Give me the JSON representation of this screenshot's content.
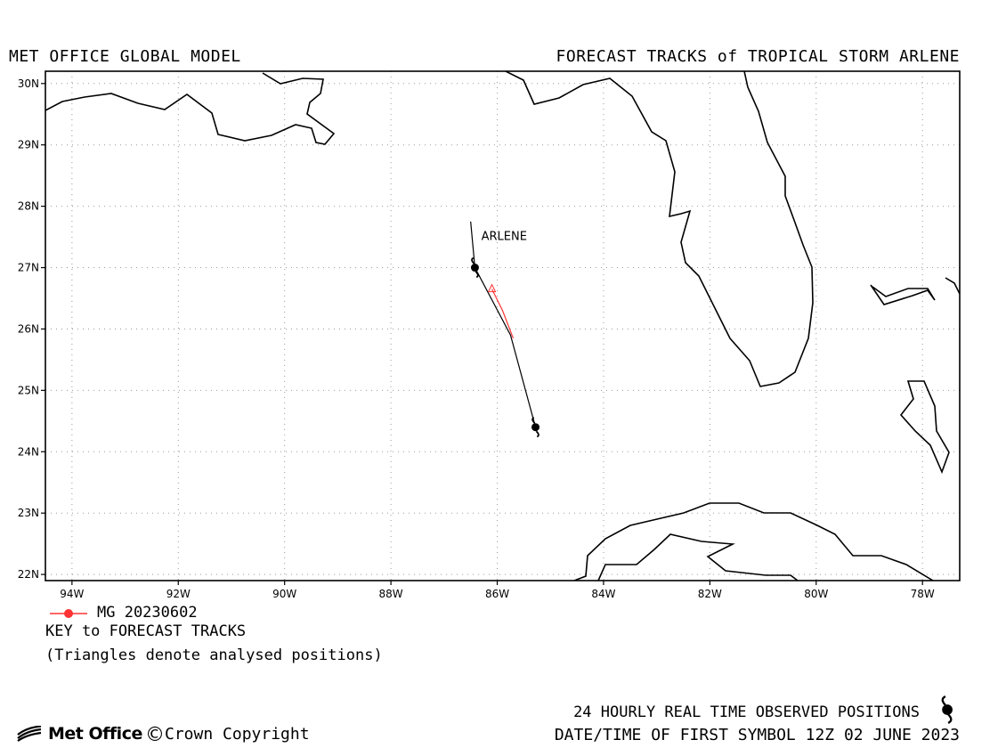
{
  "header": {
    "left_title": "MET OFFICE GLOBAL MODEL",
    "right_title": "FORECAST TRACKS of TROPICAL STORM ARLENE"
  },
  "map": {
    "lon_range": [
      -94.5,
      -77.3
    ],
    "lat_range": [
      21.9,
      30.2
    ],
    "lat_ticks": [
      {
        "lat": 30,
        "label": "30N"
      },
      {
        "lat": 29,
        "label": "29N"
      },
      {
        "lat": 28,
        "label": "28N"
      },
      {
        "lat": 27,
        "label": "27N"
      },
      {
        "lat": 26,
        "label": "26N"
      },
      {
        "lat": 25,
        "label": "25N"
      },
      {
        "lat": 24,
        "label": "24N"
      },
      {
        "lat": 23,
        "label": "23N"
      },
      {
        "lat": 22,
        "label": "22N"
      }
    ],
    "lon_ticks": [
      {
        "lon": -94,
        "label": "94W"
      },
      {
        "lon": -92,
        "label": "92W"
      },
      {
        "lon": -90,
        "label": "90W"
      },
      {
        "lon": -88,
        "label": "88W"
      },
      {
        "lon": -86,
        "label": "86W"
      },
      {
        "lon": -84,
        "label": "84W"
      },
      {
        "lon": -82,
        "label": "82W"
      },
      {
        "lon": -80,
        "label": "80W"
      },
      {
        "lon": -78,
        "label": "78W"
      }
    ],
    "gridlines": "dotted",
    "storm_label": {
      "text": "ARLENE",
      "lon": -86.3,
      "lat": 27.45
    },
    "observed_track": {
      "color": "#000000",
      "points": [
        [
          -86.5,
          27.75
        ],
        [
          -86.42,
          27.0
        ],
        [
          -85.75,
          25.9
        ],
        [
          -85.28,
          24.4
        ]
      ]
    },
    "observed_positions": [
      {
        "lon": -86.42,
        "lat": 27.0
      },
      {
        "lon": -85.28,
        "lat": 24.4
      }
    ],
    "forecast_tracks": [
      {
        "name": "MG 20230602",
        "color": "#ff3333",
        "points": [
          [
            -86.1,
            26.65
          ],
          [
            -85.9,
            26.3
          ],
          [
            -85.7,
            25.85
          ]
        ],
        "analysed_positions": [
          [
            -86.1,
            26.65
          ]
        ]
      }
    ]
  },
  "legend": {
    "run_label": "MG 20230602",
    "run_color": "#ff3333",
    "key_title": "KEY to FORECAST TRACKS",
    "key_note": "(Triangles denote analysed positions)"
  },
  "footer": {
    "brand": "Met Office",
    "copyright_symbol": "©",
    "copyright": "Crown Copyright",
    "observed_note": "24 HOURLY REAL TIME OBSERVED POSITIONS",
    "datetime_note": "DATE/TIME OF FIRST SYMBOL 12Z 02 JUNE 2023"
  }
}
